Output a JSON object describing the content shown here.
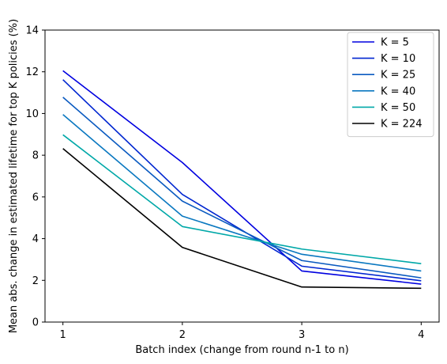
{
  "chart_data": {
    "type": "line",
    "title": "",
    "xlabel": "Batch index (change from round n-1 to n)",
    "ylabel": "Mean abs. change in estimated lifetime for top K policies (%)",
    "x": [
      1,
      2,
      3,
      4
    ],
    "xticks": [
      1,
      2,
      3,
      4
    ],
    "xlim": [
      0.85,
      4.15
    ],
    "ylim": [
      0,
      14
    ],
    "yticks": [
      0,
      2,
      4,
      6,
      8,
      10,
      12,
      14
    ],
    "grid": false,
    "legend_position": "top-right",
    "series": [
      {
        "name": "K = 5",
        "color": "#0000e0",
        "values": [
          12.05,
          7.65,
          2.45,
          1.82
        ]
      },
      {
        "name": "K = 10",
        "color": "#0026d0",
        "values": [
          11.62,
          6.12,
          2.68,
          1.98
        ]
      },
      {
        "name": "K = 25",
        "color": "#0a5ac0",
        "values": [
          10.78,
          5.8,
          2.95,
          2.12
        ]
      },
      {
        "name": "K = 40",
        "color": "#0a78c0",
        "values": [
          9.95,
          5.08,
          3.25,
          2.45
        ]
      },
      {
        "name": "K = 50",
        "color": "#00a8a8",
        "values": [
          8.98,
          4.58,
          3.5,
          2.8
        ]
      },
      {
        "name": "K = 224",
        "color": "#000000",
        "values": [
          8.32,
          3.58,
          1.68,
          1.62
        ]
      }
    ]
  }
}
